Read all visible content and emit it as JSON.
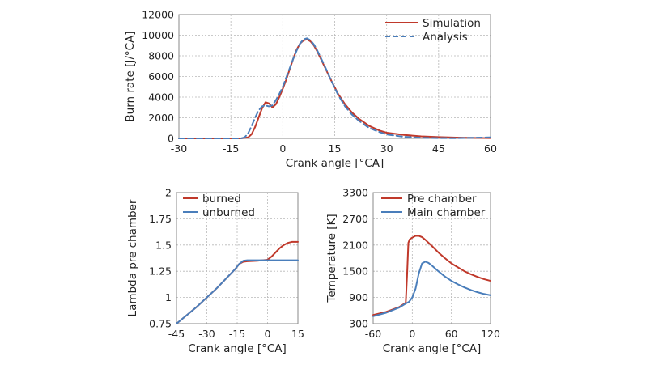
{
  "chart_data": [
    {
      "type": "line",
      "xlabel": "Crank angle [°CA]",
      "ylabel": "Burn rate [J/°CA]",
      "xlim": [
        -30,
        60
      ],
      "ylim": [
        0,
        12000
      ],
      "xticks": [
        "-30",
        "-15",
        "0",
        "15",
        "30",
        "45",
        "60"
      ],
      "yticks": [
        "0",
        "2000",
        "4000",
        "6000",
        "8000",
        "10000",
        "12000"
      ],
      "grid": true,
      "legend_position": "top-right",
      "series": [
        {
          "name": "Simulation",
          "color": "#c0392b",
          "style": "solid",
          "x": [
            -30,
            -20,
            -12,
            -10,
            -9,
            -8,
            -7,
            -6,
            -5,
            -4,
            -3,
            -2,
            -1,
            0,
            1,
            2,
            3,
            4,
            5,
            6,
            7,
            8,
            9,
            10,
            11,
            12,
            14,
            16,
            18,
            20,
            22,
            25,
            28,
            30,
            35,
            40,
            45,
            50,
            55,
            60
          ],
          "y": [
            0,
            0,
            0,
            100,
            400,
            1100,
            2000,
            2900,
            3500,
            3400,
            3000,
            3300,
            4000,
            4800,
            5700,
            6700,
            7700,
            8600,
            9200,
            9500,
            9600,
            9400,
            9000,
            8400,
            7700,
            7000,
            5600,
            4300,
            3300,
            2500,
            1900,
            1200,
            750,
            550,
            330,
            200,
            130,
            80,
            50,
            30
          ]
        },
        {
          "name": "Analysis",
          "color": "#4a7ebb",
          "style": "dashed",
          "x": [
            -30,
            -20,
            -12,
            -11,
            -10,
            -9,
            -8,
            -7,
            -6,
            -5,
            -4,
            -3,
            -2,
            -1,
            0,
            1,
            2,
            3,
            4,
            5,
            6,
            7,
            8,
            9,
            10,
            11,
            12,
            14,
            16,
            18,
            20,
            22,
            25,
            28,
            30,
            35,
            40,
            45,
            50,
            55,
            60
          ],
          "y": [
            0,
            0,
            0,
            100,
            500,
            1200,
            2000,
            2700,
            3100,
            3200,
            3100,
            3200,
            3700,
            4300,
            5000,
            5900,
            6800,
            7700,
            8500,
            9200,
            9600,
            9700,
            9500,
            9100,
            8500,
            7800,
            7100,
            5600,
            4200,
            3100,
            2300,
            1700,
            1000,
            600,
            380,
            150,
            60,
            30,
            20,
            60,
            100
          ]
        }
      ]
    },
    {
      "type": "line",
      "xlabel": "Crank angle [°CA]",
      "ylabel": "Lambda pre chamber",
      "xlim": [
        -45,
        15
      ],
      "ylim": [
        0.75,
        2
      ],
      "xticks": [
        "-45",
        "-30",
        "-15",
        "0",
        "15"
      ],
      "yticks": [
        "0.75",
        "1",
        "1.25",
        "1.5",
        "1.75",
        "2"
      ],
      "grid": true,
      "legend_position": "top-left",
      "series": [
        {
          "name": "burned",
          "color": "#c0392b",
          "style": "solid",
          "x": [
            -45,
            -40,
            -35,
            -30,
            -25,
            -20,
            -16,
            -14,
            -12,
            -10,
            -5,
            0,
            2,
            4,
            6,
            8,
            10,
            12,
            15
          ],
          "y": [
            0.75,
            0.83,
            0.91,
            1.0,
            1.09,
            1.19,
            1.27,
            1.32,
            1.34,
            1.345,
            1.35,
            1.36,
            1.39,
            1.43,
            1.47,
            1.5,
            1.52,
            1.53,
            1.53
          ]
        },
        {
          "name": "unburned",
          "color": "#4a7ebb",
          "style": "solid",
          "x": [
            -45,
            -40,
            -35,
            -30,
            -25,
            -20,
            -16,
            -14,
            -12,
            -10,
            -5,
            0,
            5,
            10,
            15
          ],
          "y": [
            0.75,
            0.83,
            0.91,
            1.0,
            1.09,
            1.19,
            1.27,
            1.32,
            1.35,
            1.355,
            1.355,
            1.355,
            1.355,
            1.355,
            1.355
          ]
        }
      ]
    },
    {
      "type": "line",
      "xlabel": "Crank angle [°CA]",
      "ylabel": "Temperature [K]",
      "xlim": [
        -60,
        120
      ],
      "ylim": [
        300,
        3300
      ],
      "xticks": [
        "-60",
        "0",
        "60",
        "120"
      ],
      "yticks": [
        "300",
        "900",
        "1500",
        "2100",
        "2700",
        "3300"
      ],
      "grid": true,
      "legend_position": "top-right",
      "series": [
        {
          "name": "Pre chamber",
          "color": "#c0392b",
          "style": "solid",
          "x": [
            -60,
            -40,
            -20,
            -10,
            -8,
            -6,
            -4,
            0,
            5,
            10,
            15,
            20,
            30,
            40,
            50,
            60,
            70,
            80,
            90,
            100,
            110,
            120
          ],
          "y": [
            500,
            570,
            680,
            780,
            1400,
            2150,
            2230,
            2270,
            2310,
            2310,
            2280,
            2220,
            2080,
            1930,
            1800,
            1680,
            1590,
            1500,
            1430,
            1370,
            1320,
            1280
          ]
        },
        {
          "name": "Main chamber",
          "color": "#4a7ebb",
          "style": "solid",
          "x": [
            -60,
            -40,
            -20,
            -10,
            -5,
            0,
            5,
            10,
            15,
            20,
            25,
            30,
            40,
            50,
            60,
            70,
            80,
            90,
            100,
            110,
            120
          ],
          "y": [
            470,
            550,
            670,
            760,
            800,
            900,
            1100,
            1450,
            1680,
            1720,
            1690,
            1630,
            1500,
            1380,
            1280,
            1200,
            1130,
            1070,
            1020,
            980,
            950
          ]
        }
      ]
    }
  ]
}
